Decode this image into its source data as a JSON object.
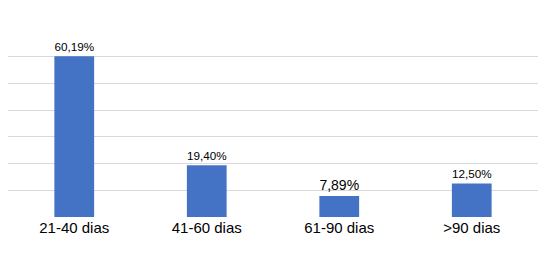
{
  "chart_data": {
    "type": "bar",
    "categories": [
      "21-40 dias",
      "41-60 dias",
      "61-90 dias",
      ">90 dias"
    ],
    "values": [
      60.19,
      19.4,
      7.89,
      12.5
    ],
    "value_labels": [
      "60,19%",
      "19,40%",
      "7,89%",
      "12,50%"
    ],
    "data_labels": true,
    "color": "#4472c4",
    "ylim": [
      0,
      70
    ],
    "yticks": [
      0,
      10,
      20,
      30,
      40,
      50,
      60,
      70
    ],
    "grid": true,
    "tick_labels": "x"
  }
}
